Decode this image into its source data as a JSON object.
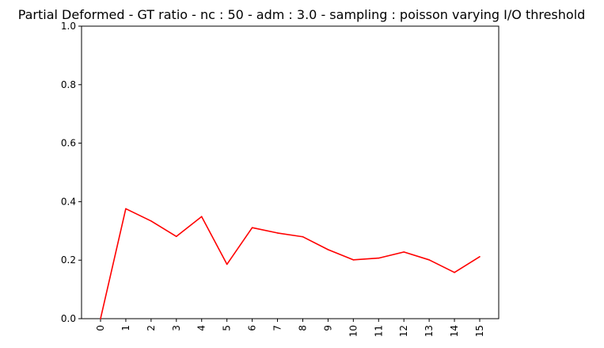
{
  "chart_data": {
    "type": "line",
    "title": "Partial Deformed - GT ratio - nc : 50 - adm : 3.0 - sampling : poisson varying I/O threshold",
    "xlabel": "",
    "ylabel": "",
    "x": [
      0,
      1,
      2,
      3,
      4,
      5,
      6,
      7,
      8,
      9,
      10,
      11,
      12,
      13,
      14,
      15
    ],
    "x_tick_labels": [
      "0",
      "1",
      "2",
      "3",
      "4",
      "5",
      "6",
      "7",
      "8",
      "9",
      "10",
      "11",
      "12",
      "13",
      "14",
      "15"
    ],
    "y_tick_labels": [
      "0.0",
      "0.2",
      "0.4",
      "0.6",
      "0.8",
      "1.0"
    ],
    "ylim": [
      0,
      1
    ],
    "grid": false,
    "series": [
      {
        "color": "#ff0000",
        "values": [
          0.0,
          0.376,
          0.334,
          0.281,
          0.349,
          0.186,
          0.311,
          0.293,
          0.28,
          0.236,
          0.201,
          0.207,
          0.228,
          0.201,
          0.158,
          0.212
        ]
      }
    ]
  }
}
